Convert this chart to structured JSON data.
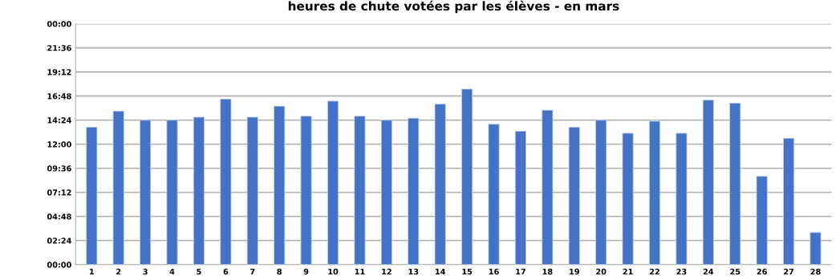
{
  "chart_data": {
    "type": "bar",
    "title": "heures de chute votées par les élèves - en mars",
    "categories": [
      "1",
      "2",
      "3",
      "4",
      "5",
      "6",
      "7",
      "8",
      "9",
      "10",
      "11",
      "12",
      "13",
      "14",
      "15",
      "16",
      "17",
      "18",
      "19",
      "20",
      "21",
      "22",
      "23",
      "24",
      "25",
      "26",
      "27",
      "28"
    ],
    "values": [
      13.7,
      15.3,
      14.4,
      14.4,
      14.7,
      16.5,
      14.7,
      15.8,
      14.8,
      16.3,
      14.8,
      14.4,
      14.6,
      16.0,
      17.5,
      14.0,
      13.3,
      15.4,
      13.7,
      14.4,
      13.1,
      14.3,
      13.1,
      16.4,
      16.1,
      8.8,
      12.6,
      3.2
    ],
    "color": "#4472c4",
    "ylim": [
      0,
      24
    ],
    "yticks": [
      {
        "value": 0,
        "label": "00:00"
      },
      {
        "value": 2.4,
        "label": "02:24"
      },
      {
        "value": 4.8,
        "label": "04:48"
      },
      {
        "value": 7.2,
        "label": "07:12"
      },
      {
        "value": 9.6,
        "label": "09:36"
      },
      {
        "value": 12,
        "label": "12:00"
      },
      {
        "value": 14.4,
        "label": "14:24"
      },
      {
        "value": 16.8,
        "label": "16:48"
      },
      {
        "value": 19.2,
        "label": "19:12"
      },
      {
        "value": 21.6,
        "label": "21:36"
      },
      {
        "value": 24,
        "label": "00:00"
      }
    ],
    "grid": "y",
    "legend": false
  }
}
